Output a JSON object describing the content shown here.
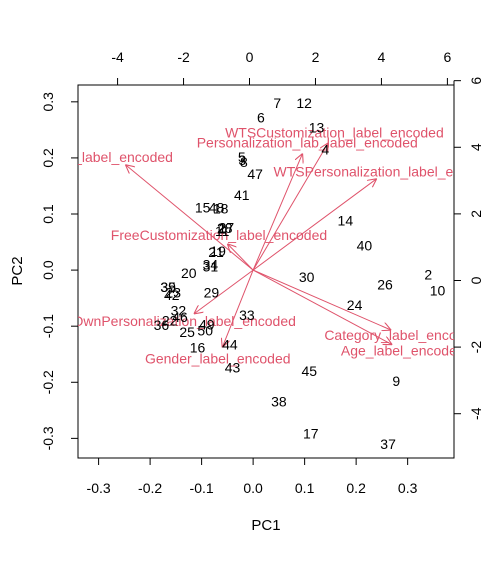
{
  "chart_data": {
    "type": "biplot",
    "xlabel": "PC1",
    "ylabel": "PC2",
    "xlim": [
      -0.34,
      0.39
    ],
    "ylim": [
      -0.335,
      0.33
    ],
    "xticks": [
      -0.3,
      -0.2,
      -0.1,
      0.0,
      0.1,
      0.2,
      0.3
    ],
    "xtick_labels": [
      "-0.3",
      "-0.2",
      "-0.1",
      "0.0",
      "0.1",
      "0.2",
      "0.3"
    ],
    "yticks": [
      -0.3,
      -0.2,
      -0.1,
      0.0,
      0.1,
      0.2,
      0.3
    ],
    "ytick_labels": [
      "-0.3",
      "-0.2",
      "-0.1",
      "0.0",
      "0.1",
      "0.2",
      "0.3"
    ],
    "top_xlim": [
      -5.2,
      6.2
    ],
    "top_xticks": [
      -4,
      -2,
      0,
      2,
      4,
      6
    ],
    "top_xtick_labels": [
      "-4",
      "-2",
      "0",
      "2",
      "4",
      "6"
    ],
    "right_ylim": [
      -5.33,
      5.87
    ],
    "right_yticks": [
      -4,
      -2,
      0,
      2,
      4,
      6
    ],
    "right_ytick_labels": [
      "-4",
      "-2",
      "0",
      "2",
      "4",
      "6"
    ],
    "arrow_color": "#df536b",
    "observations": [
      {
        "label": "1",
        "x": -0.06,
        "y": 0.074
      },
      {
        "label": "2",
        "x": 0.34,
        "y": -0.008
      },
      {
        "label": "3",
        "x": -0.021,
        "y": 0.196
      },
      {
        "label": "4",
        "x": 0.14,
        "y": 0.215
      },
      {
        "label": "5",
        "x": -0.022,
        "y": 0.202
      },
      {
        "label": "6",
        "x": 0.015,
        "y": 0.272
      },
      {
        "label": "7",
        "x": 0.047,
        "y": 0.298
      },
      {
        "label": "8",
        "x": -0.018,
        "y": 0.193
      },
      {
        "label": "9",
        "x": 0.278,
        "y": -0.198
      },
      {
        "label": "10",
        "x": 0.358,
        "y": -0.036
      },
      {
        "label": "11",
        "x": -0.06,
        "y": 0.07
      },
      {
        "label": "12",
        "x": 0.099,
        "y": 0.298
      },
      {
        "label": "13",
        "x": 0.123,
        "y": 0.254
      },
      {
        "label": "14",
        "x": 0.179,
        "y": 0.088
      },
      {
        "label": "15",
        "x": -0.098,
        "y": 0.112
      },
      {
        "label": "16",
        "x": -0.108,
        "y": -0.138
      },
      {
        "label": "17",
        "x": 0.112,
        "y": -0.291
      },
      {
        "label": "18",
        "x": -0.063,
        "y": 0.11
      },
      {
        "label": "19",
        "x": -0.068,
        "y": 0.034
      },
      {
        "label": "20",
        "x": -0.125,
        "y": -0.005
      },
      {
        "label": "21",
        "x": -0.072,
        "y": 0.032
      },
      {
        "label": "22",
        "x": -0.162,
        "y": -0.09
      },
      {
        "label": "23",
        "x": -0.155,
        "y": -0.04
      },
      {
        "label": "24",
        "x": 0.197,
        "y": -0.062
      },
      {
        "label": "25",
        "x": -0.128,
        "y": -0.11
      },
      {
        "label": "26",
        "x": 0.256,
        "y": -0.026
      },
      {
        "label": "27",
        "x": -0.052,
        "y": 0.076
      },
      {
        "label": "28",
        "x": -0.055,
        "y": 0.075
      },
      {
        "label": "29",
        "x": -0.081,
        "y": -0.04
      },
      {
        "label": "30",
        "x": 0.104,
        "y": -0.012
      },
      {
        "label": "31",
        "x": -0.083,
        "y": 0.006
      },
      {
        "label": "32",
        "x": -0.145,
        "y": -0.072
      },
      {
        "label": "33",
        "x": -0.012,
        "y": -0.08
      },
      {
        "label": "34",
        "x": -0.083,
        "y": 0.01
      },
      {
        "label": "35",
        "x": -0.165,
        "y": -0.03
      },
      {
        "label": "36",
        "x": -0.178,
        "y": -0.098
      },
      {
        "label": "37",
        "x": 0.262,
        "y": -0.31
      },
      {
        "label": "38",
        "x": 0.05,
        "y": -0.234
      },
      {
        "label": "39",
        "x": -0.165,
        "y": -0.03
      },
      {
        "label": "40",
        "x": 0.216,
        "y": 0.044
      },
      {
        "label": "41",
        "x": -0.022,
        "y": 0.134
      },
      {
        "label": "42",
        "x": -0.158,
        "y": -0.044
      },
      {
        "label": "43",
        "x": -0.04,
        "y": -0.174
      },
      {
        "label": "44",
        "x": -0.045,
        "y": -0.133
      },
      {
        "label": "45",
        "x": 0.109,
        "y": -0.18
      },
      {
        "label": "46",
        "x": -0.142,
        "y": -0.084
      },
      {
        "label": "47",
        "x": 0.004,
        "y": 0.171
      },
      {
        "label": "48",
        "x": -0.071,
        "y": 0.112
      },
      {
        "label": "49",
        "x": -0.09,
        "y": -0.097
      },
      {
        "label": "50",
        "x": -0.093,
        "y": -0.108
      }
    ],
    "variables": [
      {
        "label": "WTSCustomization_label_encoded",
        "x": 0.146,
        "y": 0.227
      },
      {
        "label": "Personalization_lab_label_encoded",
        "x": 0.096,
        "y": 0.208
      },
      {
        "label": "WTSPersonalization_label_encoded",
        "x": 0.24,
        "y": 0.163
      },
      {
        "label": "us_label_encoded",
        "x": -0.248,
        "y": 0.188
      },
      {
        "label": "FreeCustomization_label_encoded",
        "x": -0.05,
        "y": 0.047
      },
      {
        "label": "OwnPersonalization_label_encoded",
        "x": -0.115,
        "y": -0.078
      },
      {
        "label": "Gender_label_encoded",
        "x": -0.06,
        "y": -0.138
      },
      {
        "label": "Category_label_encoded",
        "x": 0.268,
        "y": -0.107
      },
      {
        "label": "Age_label_encoded",
        "x": 0.27,
        "y": -0.133
      }
    ]
  }
}
